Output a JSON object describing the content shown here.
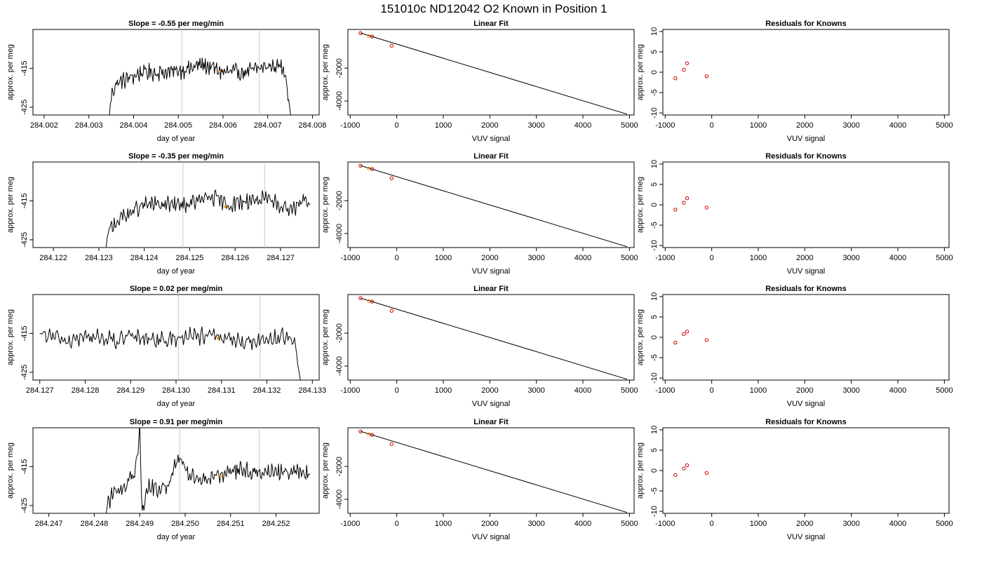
{
  "figure": {
    "title": "151010c     ND12042   O2 Known in Position  1"
  },
  "colors": {
    "series": "#000000",
    "point": "#ff9900",
    "known_marker": "#cc0000",
    "guide_line": "#c8c8c8"
  },
  "chart_data": [
    {
      "type": "line",
      "title": "Slope =  -0.55  per meg/min",
      "xlabel": "day of year",
      "ylabel": "approx. per meg",
      "xlim": [
        284.00175,
        284.00815
      ],
      "ylim": [
        -427,
        -405
      ],
      "xticks": [
        "284.002",
        "284.003",
        "284.004",
        "284.005",
        "284.006",
        "284.007",
        "284.008"
      ],
      "yticks": [
        "-425",
        "-415"
      ],
      "x_start": 284.00345,
      "x_end": 284.00752,
      "vlines": [
        284.00508,
        284.00681
      ],
      "y_keypoints": [
        [
          284.00345,
          -428
        ],
        [
          284.0035,
          -422
        ],
        [
          284.0036,
          -419
        ],
        [
          284.0038,
          -418
        ],
        [
          284.004,
          -417
        ],
        [
          284.0042,
          -416
        ],
        [
          284.0045,
          -416
        ],
        [
          284.0048,
          -416
        ],
        [
          284.005,
          -415.5
        ],
        [
          284.0053,
          -415
        ],
        [
          284.0055,
          -414
        ],
        [
          284.0058,
          -415
        ],
        [
          284.006,
          -416
        ],
        [
          284.0063,
          -416
        ],
        [
          284.0065,
          -416
        ],
        [
          284.0068,
          -415
        ],
        [
          284.007,
          -414.5
        ],
        [
          284.0073,
          -414.5
        ],
        [
          284.0074,
          -416
        ],
        [
          284.00752,
          -428
        ]
      ],
      "highlight": [
        284.00592,
        -415.8
      ]
    },
    {
      "type": "scatter",
      "title": "Linear Fit",
      "xlabel": "VUV signal",
      "ylabel": "approx. per meg",
      "xlim": [
        -1050,
        5100
      ],
      "ylim": [
        -4850,
        350
      ],
      "xticks": [
        "-1000",
        "0",
        "1000",
        "2000",
        "3000",
        "4000",
        "5000"
      ],
      "yticks": [
        "-4000",
        "-2000"
      ],
      "points": [
        [
          -780,
          130
        ],
        [
          -600,
          -50
        ],
        [
          -530,
          -80
        ],
        [
          -110,
          -640
        ]
      ],
      "line": [
        [
          -780,
          130
        ],
        [
          4950,
          -4800
        ]
      ]
    },
    {
      "type": "scatter",
      "title": "Residuals for Knowns",
      "xlabel": "VUV signal",
      "ylabel": "approx. per meg",
      "xlim": [
        -1050,
        5100
      ],
      "ylim": [
        -10.5,
        10.5
      ],
      "xticks": [
        "-1000",
        "0",
        "1000",
        "2000",
        "3000",
        "4000",
        "5000"
      ],
      "yticks": [
        "-10",
        "-5",
        "0",
        "5",
        "10"
      ],
      "points": [
        [
          -780,
          -1.5
        ],
        [
          -600,
          0.6
        ],
        [
          -530,
          2.2
        ],
        [
          -110,
          -1.0
        ]
      ]
    },
    {
      "type": "line",
      "title": "Slope =  -0.35  per meg/min",
      "xlabel": "day of year",
      "ylabel": "approx. per meg",
      "xlim": [
        284.12155,
        284.12785
      ],
      "ylim": [
        -427,
        -405
      ],
      "xticks": [
        "284.122",
        "284.123",
        "284.124",
        "284.125",
        "284.126",
        "284.127"
      ],
      "yticks": [
        "-425",
        "-415"
      ],
      "x_start": 284.12315,
      "x_end": 284.12765,
      "vlines": [
        284.12485,
        284.12665
      ],
      "y_keypoints": [
        [
          284.12315,
          -428
        ],
        [
          284.1232,
          -423
        ],
        [
          284.1234,
          -420
        ],
        [
          284.1237,
          -418
        ],
        [
          284.124,
          -416
        ],
        [
          284.1243,
          -416
        ],
        [
          284.1246,
          -416
        ],
        [
          284.1249,
          -416
        ],
        [
          284.1252,
          -415
        ],
        [
          284.1255,
          -414
        ],
        [
          284.1258,
          -416
        ],
        [
          284.1261,
          -415.5
        ],
        [
          284.1264,
          -414.5
        ],
        [
          284.1267,
          -415
        ],
        [
          284.127,
          -416
        ],
        [
          284.1273,
          -417
        ],
        [
          284.1275,
          -414
        ],
        [
          284.12765,
          -416
        ]
      ],
      "highlight": [
        284.12578,
        -416.5
      ]
    },
    {
      "type": "scatter",
      "title": "Linear Fit",
      "xlabel": "VUV signal",
      "ylabel": "approx. per meg",
      "xlim": [
        -1050,
        5100
      ],
      "ylim": [
        -4850,
        350
      ],
      "xticks": [
        "-1000",
        "0",
        "1000",
        "2000",
        "3000",
        "4000",
        "5000"
      ],
      "yticks": [
        "-4000",
        "-2000"
      ],
      "points": [
        [
          -780,
          130
        ],
        [
          -600,
          -50
        ],
        [
          -530,
          -80
        ],
        [
          -110,
          -640
        ]
      ],
      "line": [
        [
          -780,
          130
        ],
        [
          4950,
          -4800
        ]
      ]
    },
    {
      "type": "scatter",
      "title": "Residuals for Knowns",
      "xlabel": "VUV signal",
      "ylabel": "approx. per meg",
      "xlim": [
        -1050,
        5100
      ],
      "ylim": [
        -10.5,
        10.5
      ],
      "xticks": [
        "-1000",
        "0",
        "1000",
        "2000",
        "3000",
        "4000",
        "5000"
      ],
      "yticks": [
        "-10",
        "-5",
        "0",
        "5",
        "10"
      ],
      "points": [
        [
          -780,
          -1.2
        ],
        [
          -600,
          0.5
        ],
        [
          -530,
          1.6
        ],
        [
          -110,
          -0.7
        ]
      ]
    },
    {
      "type": "line",
      "title": "Slope =  0.02  per meg/min",
      "xlabel": "day of year",
      "ylabel": "approx. per meg",
      "xlim": [
        284.12685,
        284.13315
      ],
      "ylim": [
        -427,
        -405
      ],
      "xticks": [
        "284.127",
        "284.128",
        "284.129",
        "284.130",
        "284.131",
        "284.132",
        "284.133"
      ],
      "yticks": [
        "-425",
        "-415"
      ],
      "x_start": 284.127,
      "x_end": 284.13275,
      "vlines": [
        284.13005,
        284.13185
      ],
      "y_keypoints": [
        [
          284.127,
          -415
        ],
        [
          284.1273,
          -416
        ],
        [
          284.1276,
          -417
        ],
        [
          284.128,
          -416
        ],
        [
          284.1283,
          -416
        ],
        [
          284.1287,
          -417
        ],
        [
          284.129,
          -416
        ],
        [
          284.1294,
          -416
        ],
        [
          284.1297,
          -417
        ],
        [
          284.13,
          -416
        ],
        [
          284.1304,
          -415.5
        ],
        [
          284.1307,
          -416
        ],
        [
          284.131,
          -416
        ],
        [
          284.1314,
          -417
        ],
        [
          284.1318,
          -417
        ],
        [
          284.1321,
          -416
        ],
        [
          284.1324,
          -416
        ],
        [
          284.1326,
          -417
        ],
        [
          284.13275,
          -428
        ]
      ],
      "highlight": [
        284.13092,
        -416.2
      ]
    },
    {
      "type": "scatter",
      "title": "Linear Fit",
      "xlabel": "VUV signal",
      "ylabel": "approx. per meg",
      "xlim": [
        -1050,
        5100
      ],
      "ylim": [
        -4850,
        350
      ],
      "xticks": [
        "-1000",
        "0",
        "1000",
        "2000",
        "3000",
        "4000",
        "5000"
      ],
      "yticks": [
        "-4000",
        "-2000"
      ],
      "points": [
        [
          -780,
          130
        ],
        [
          -600,
          -50
        ],
        [
          -530,
          -80
        ],
        [
          -110,
          -640
        ]
      ],
      "line": [
        [
          -780,
          130
        ],
        [
          4950,
          -4800
        ]
      ]
    },
    {
      "type": "scatter",
      "title": "Residuals for Knowns",
      "xlabel": "VUV signal",
      "ylabel": "approx. per meg",
      "xlim": [
        -1050,
        5100
      ],
      "ylim": [
        -10.5,
        10.5
      ],
      "xticks": [
        "-1000",
        "0",
        "1000",
        "2000",
        "3000",
        "4000",
        "5000"
      ],
      "yticks": [
        "-10",
        "-5",
        "0",
        "5",
        "10"
      ],
      "points": [
        [
          -780,
          -1.3
        ],
        [
          -600,
          0.8
        ],
        [
          -530,
          1.4
        ],
        [
          -110,
          -0.7
        ]
      ]
    },
    {
      "type": "line",
      "title": "Slope =  0.91  per meg/min",
      "xlabel": "day of year",
      "ylabel": "approx. per meg",
      "xlim": [
        284.24665,
        284.25295
      ],
      "ylim": [
        -427,
        -405
      ],
      "xticks": [
        "284.247",
        "284.248",
        "284.249",
        "284.250",
        "284.251",
        "284.252"
      ],
      "yticks": [
        "-425",
        "-415"
      ],
      "x_start": 284.24825,
      "x_end": 284.25275,
      "vlines": [
        284.24988,
        284.25163
      ],
      "y_keypoints": [
        [
          284.24825,
          -428
        ],
        [
          284.2483,
          -424
        ],
        [
          284.2485,
          -421
        ],
        [
          284.2487,
          -420
        ],
        [
          284.2489,
          -416
        ],
        [
          284.249,
          -405
        ],
        [
          284.24905,
          -427
        ],
        [
          284.2492,
          -420
        ],
        [
          284.2494,
          -421
        ],
        [
          284.2496,
          -420
        ],
        [
          284.24985,
          -413
        ],
        [
          284.2501,
          -417
        ],
        [
          284.2504,
          -418
        ],
        [
          284.2507,
          -417
        ],
        [
          284.251,
          -416
        ],
        [
          284.2513,
          -416
        ],
        [
          284.2516,
          -416
        ],
        [
          284.2519,
          -416.5
        ],
        [
          284.2522,
          -416
        ],
        [
          284.2525,
          -416.5
        ],
        [
          284.25275,
          -417
        ]
      ],
      "highlight": [
        284.25078,
        -417.5
      ]
    },
    {
      "type": "scatter",
      "title": "Linear Fit",
      "xlabel": "VUV signal",
      "ylabel": "approx. per meg",
      "xlim": [
        -1050,
        5100
      ],
      "ylim": [
        -4850,
        350
      ],
      "xticks": [
        "-1000",
        "0",
        "1000",
        "2000",
        "3000",
        "4000",
        "5000"
      ],
      "yticks": [
        "-4000",
        "-2000"
      ],
      "points": [
        [
          -780,
          130
        ],
        [
          -600,
          -50
        ],
        [
          -530,
          -80
        ],
        [
          -110,
          -640
        ]
      ],
      "line": [
        [
          -780,
          130
        ],
        [
          4950,
          -4800
        ]
      ]
    },
    {
      "type": "scatter",
      "title": "Residuals for Knowns",
      "xlabel": "VUV signal",
      "ylabel": "approx. per meg",
      "xlim": [
        -1050,
        5100
      ],
      "ylim": [
        -10.5,
        10.5
      ],
      "xticks": [
        "-1000",
        "0",
        "1000",
        "2000",
        "3000",
        "4000",
        "5000"
      ],
      "yticks": [
        "-10",
        "-5",
        "0",
        "5",
        "10"
      ],
      "points": [
        [
          -780,
          -1.1
        ],
        [
          -600,
          0.5
        ],
        [
          -530,
          1.3
        ],
        [
          -110,
          -0.6
        ]
      ]
    }
  ]
}
